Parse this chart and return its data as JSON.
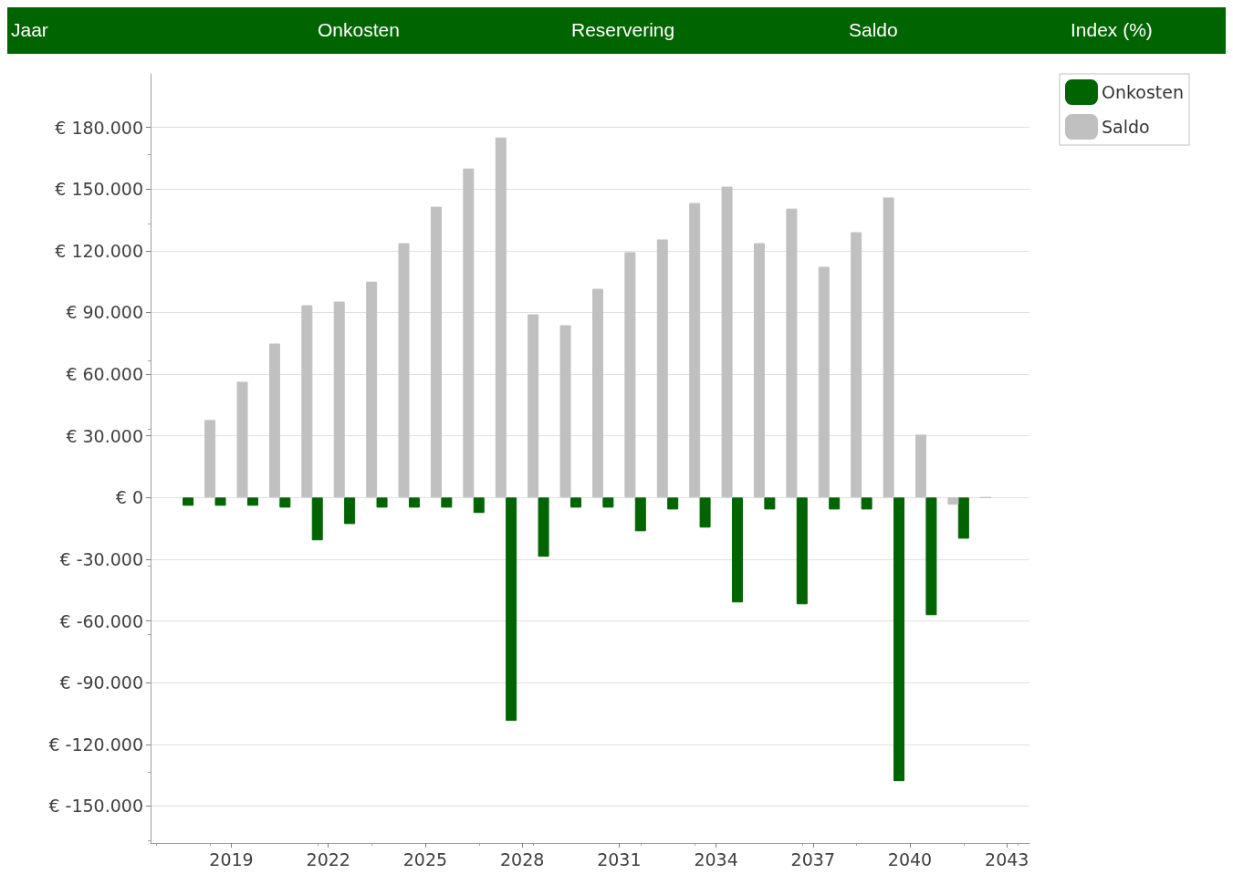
{
  "chart_data": {
    "type": "bar",
    "annotations": [
      "Jaar",
      "Onkosten",
      "Reservering",
      "Saldo",
      "Index (%)"
    ],
    "x": [
      2018,
      2019,
      2020,
      2021,
      2022,
      2023,
      2024,
      2025,
      2026,
      2027,
      2028,
      2029,
      2030,
      2031,
      2032,
      2033,
      2034,
      2035,
      2036,
      2037,
      2038,
      2039,
      2040,
      2041,
      2042
    ],
    "series": [
      {
        "name": "Onkosten",
        "color": "#006400",
        "values": [
          -4000,
          -4000,
          -4000,
          -4900,
          -20800,
          -12900,
          -4900,
          -4900,
          -4900,
          -7500,
          -108600,
          -28800,
          -4900,
          -4900,
          -16400,
          -5800,
          -14600,
          -51000,
          -5800,
          -51900,
          -5800,
          -5800,
          -137900,
          -57200,
          -20000
        ]
      },
      {
        "name": "Saldo",
        "color": "#c0c0c0",
        "values": [
          37700,
          56300,
          74900,
          93500,
          95300,
          105000,
          123700,
          141400,
          160000,
          175100,
          89100,
          83800,
          101500,
          119300,
          125500,
          143200,
          151200,
          123700,
          140500,
          112200,
          129000,
          145900,
          30600,
          -3500,
          0
        ]
      }
    ],
    "xlim": [
      2016.5,
      2043.7
    ],
    "xticks": [
      2019,
      2022,
      2025,
      2028,
      2031,
      2034,
      2037,
      2040,
      2043
    ],
    "ylim": [
      -168000,
      206000
    ],
    "yticks": [
      {
        "value": -150000,
        "label": "€ -150.000"
      },
      {
        "value": -120000,
        "label": "€ -120.000"
      },
      {
        "value": -90000,
        "label": "€ -90.000"
      },
      {
        "value": -60000,
        "label": "€ -60.000"
      },
      {
        "value": -30000,
        "label": "€ -30.000"
      },
      {
        "value": 0,
        "label": "€ 0"
      },
      {
        "value": 30000,
        "label": "€ 30.000"
      },
      {
        "value": 60000,
        "label": "€ 60.000"
      },
      {
        "value": 90000,
        "label": "€ 90.000"
      },
      {
        "value": 120000,
        "label": "€ 120.000"
      },
      {
        "value": 150000,
        "label": "€ 150.000"
      },
      {
        "value": 180000,
        "label": "€ 180.000"
      }
    ],
    "grid": "y",
    "legend": "top right"
  }
}
